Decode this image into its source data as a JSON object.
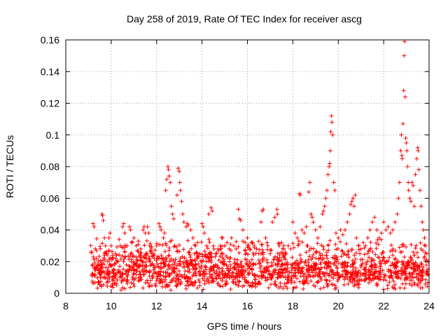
{
  "chart_data": {
    "type": "scatter",
    "title": "Day 258 of 2019, Rate Of TEC Index for receiver ascg",
    "xlabel": "GPS time / hours",
    "ylabel": "ROTI / TECUs",
    "xlim": [
      8,
      24
    ],
    "ylim": [
      0,
      0.16
    ],
    "xticks": [
      8,
      10,
      12,
      14,
      16,
      18,
      20,
      22,
      24
    ],
    "yticks": [
      0,
      0.02,
      0.04,
      0.06,
      0.08,
      0.1,
      0.12,
      0.14,
      0.16
    ],
    "xtick_labels": [
      "8",
      "10",
      "12",
      "14",
      "16",
      "18",
      "20",
      "22",
      "24"
    ],
    "ytick_labels": [
      "0",
      "0.02",
      "0.04",
      "0.06",
      "0.08",
      "0.1",
      "0.12",
      "0.14",
      "0.16"
    ],
    "grid": true,
    "marker": "+",
    "color": "#ff0000",
    "series": [
      {
        "name": "ROTI",
        "points": [
          [
            9.2,
            0.044
          ],
          [
            9.25,
            0.042
          ],
          [
            9.3,
            0.028
          ],
          [
            9.35,
            0.022
          ],
          [
            9.4,
            0.018
          ],
          [
            9.45,
            0.015
          ],
          [
            9.5,
            0.012
          ],
          [
            9.55,
            0.016
          ],
          [
            9.6,
            0.05
          ],
          [
            9.62,
            0.049
          ],
          [
            9.65,
            0.046
          ],
          [
            9.7,
            0.035
          ],
          [
            9.75,
            0.03
          ],
          [
            9.8,
            0.025
          ],
          [
            9.85,
            0.02
          ],
          [
            9.9,
            0.035
          ],
          [
            9.95,
            0.038
          ],
          [
            10.0,
            0.03
          ],
          [
            10.05,
            0.022
          ],
          [
            10.1,
            0.015
          ],
          [
            10.2,
            0.012
          ],
          [
            10.3,
            0.02
          ],
          [
            10.35,
            0.034
          ],
          [
            10.4,
            0.03
          ],
          [
            10.5,
            0.042
          ],
          [
            10.55,
            0.044
          ],
          [
            10.6,
            0.038
          ],
          [
            10.7,
            0.03
          ],
          [
            10.8,
            0.042
          ],
          [
            10.85,
            0.04
          ],
          [
            10.9,
            0.032
          ],
          [
            11.0,
            0.035
          ],
          [
            11.1,
            0.03
          ],
          [
            11.2,
            0.033
          ],
          [
            11.3,
            0.028
          ],
          [
            11.4,
            0.04
          ],
          [
            11.45,
            0.042
          ],
          [
            11.5,
            0.038
          ],
          [
            11.55,
            0.025
          ],
          [
            11.6,
            0.042
          ],
          [
            11.65,
            0.038
          ],
          [
            11.7,
            0.03
          ],
          [
            11.8,
            0.025
          ],
          [
            11.9,
            0.022
          ],
          [
            12.0,
            0.03
          ],
          [
            12.1,
            0.044
          ],
          [
            12.15,
            0.042
          ],
          [
            12.2,
            0.04
          ],
          [
            12.3,
            0.035
          ],
          [
            12.35,
            0.038
          ],
          [
            12.4,
            0.065
          ],
          [
            12.45,
            0.072
          ],
          [
            12.5,
            0.08
          ],
          [
            12.52,
            0.078
          ],
          [
            12.55,
            0.074
          ],
          [
            12.6,
            0.07
          ],
          [
            12.65,
            0.055
          ],
          [
            12.7,
            0.05
          ],
          [
            12.75,
            0.047
          ],
          [
            12.8,
            0.03
          ],
          [
            12.9,
            0.062
          ],
          [
            12.95,
            0.079
          ],
          [
            13.0,
            0.077
          ],
          [
            13.02,
            0.07
          ],
          [
            13.05,
            0.065
          ],
          [
            13.1,
            0.058
          ],
          [
            13.15,
            0.05
          ],
          [
            13.2,
            0.045
          ],
          [
            13.3,
            0.042
          ],
          [
            13.35,
            0.044
          ],
          [
            13.4,
            0.043
          ],
          [
            13.5,
            0.04
          ],
          [
            13.6,
            0.035
          ],
          [
            13.7,
            0.03
          ],
          [
            13.8,
            0.032
          ],
          [
            13.9,
            0.025
          ],
          [
            14.0,
            0.044
          ],
          [
            14.05,
            0.042
          ],
          [
            14.1,
            0.038
          ],
          [
            14.2,
            0.03
          ],
          [
            14.3,
            0.05
          ],
          [
            14.4,
            0.054
          ],
          [
            14.45,
            0.052
          ],
          [
            14.5,
            0.03
          ],
          [
            14.6,
            0.025
          ],
          [
            14.7,
            0.028
          ],
          [
            14.8,
            0.03
          ],
          [
            14.9,
            0.035
          ],
          [
            15.0,
            0.03
          ],
          [
            15.1,
            0.032
          ],
          [
            15.2,
            0.028
          ],
          [
            15.3,
            0.035
          ],
          [
            15.4,
            0.03
          ],
          [
            15.5,
            0.028
          ],
          [
            15.6,
            0.053
          ],
          [
            15.65,
            0.047
          ],
          [
            15.7,
            0.046
          ],
          [
            15.8,
            0.04
          ],
          [
            15.9,
            0.032
          ],
          [
            16.0,
            0.035
          ],
          [
            16.1,
            0.028
          ],
          [
            16.2,
            0.032
          ],
          [
            16.3,
            0.03
          ],
          [
            16.4,
            0.028
          ],
          [
            16.5,
            0.025
          ],
          [
            16.6,
            0.045
          ],
          [
            16.65,
            0.052
          ],
          [
            16.7,
            0.053
          ],
          [
            16.8,
            0.035
          ],
          [
            16.9,
            0.03
          ],
          [
            17.0,
            0.025
          ],
          [
            17.1,
            0.045
          ],
          [
            17.2,
            0.048
          ],
          [
            17.3,
            0.053
          ],
          [
            17.32,
            0.05
          ],
          [
            17.4,
            0.03
          ],
          [
            17.5,
            0.032
          ],
          [
            17.6,
            0.028
          ],
          [
            17.7,
            0.025
          ],
          [
            17.8,
            0.03
          ],
          [
            17.9,
            0.028
          ],
          [
            18.0,
            0.045
          ],
          [
            18.1,
            0.038
          ],
          [
            18.2,
            0.035
          ],
          [
            18.3,
            0.063
          ],
          [
            18.32,
            0.062
          ],
          [
            18.4,
            0.04
          ],
          [
            18.5,
            0.038
          ],
          [
            18.6,
            0.042
          ],
          [
            18.7,
            0.064
          ],
          [
            18.75,
            0.07
          ],
          [
            18.8,
            0.05
          ],
          [
            18.85,
            0.048
          ],
          [
            18.9,
            0.045
          ],
          [
            19.0,
            0.04
          ],
          [
            19.1,
            0.035
          ],
          [
            19.2,
            0.042
          ],
          [
            19.3,
            0.05
          ],
          [
            19.35,
            0.052
          ],
          [
            19.4,
            0.055
          ],
          [
            19.45,
            0.06
          ],
          [
            19.5,
            0.065
          ],
          [
            19.55,
            0.075
          ],
          [
            19.6,
            0.08
          ],
          [
            19.62,
            0.082
          ],
          [
            19.65,
            0.09
          ],
          [
            19.67,
            0.102
          ],
          [
            19.7,
            0.112
          ],
          [
            19.72,
            0.108
          ],
          [
            19.75,
            0.1
          ],
          [
            19.8,
            0.07
          ],
          [
            19.85,
            0.065
          ],
          [
            19.9,
            0.038
          ],
          [
            20.0,
            0.035
          ],
          [
            20.1,
            0.04
          ],
          [
            20.2,
            0.037
          ],
          [
            20.3,
            0.04
          ],
          [
            20.4,
            0.045
          ],
          [
            20.5,
            0.05
          ],
          [
            20.55,
            0.056
          ],
          [
            20.6,
            0.058
          ],
          [
            20.65,
            0.06
          ],
          [
            20.7,
            0.055
          ],
          [
            20.75,
            0.062
          ],
          [
            20.8,
            0.035
          ],
          [
            20.9,
            0.03
          ],
          [
            21.0,
            0.028
          ],
          [
            21.1,
            0.032
          ],
          [
            21.2,
            0.03
          ],
          [
            21.3,
            0.035
          ],
          [
            21.4,
            0.04
          ],
          [
            21.5,
            0.045
          ],
          [
            21.6,
            0.048
          ],
          [
            21.7,
            0.04
          ],
          [
            21.8,
            0.035
          ],
          [
            21.9,
            0.038
          ],
          [
            22.0,
            0.045
          ],
          [
            22.1,
            0.04
          ],
          [
            22.2,
            0.042
          ],
          [
            22.3,
            0.038
          ],
          [
            22.4,
            0.04
          ],
          [
            22.5,
            0.045
          ],
          [
            22.6,
            0.05
          ],
          [
            22.65,
            0.06
          ],
          [
            22.7,
            0.07
          ],
          [
            22.75,
            0.09
          ],
          [
            22.78,
            0.1
          ],
          [
            22.8,
            0.087
          ],
          [
            22.82,
            0.085
          ],
          [
            22.85,
            0.107
          ],
          [
            22.88,
            0.128
          ],
          [
            22.9,
            0.15
          ],
          [
            22.92,
            0.159
          ],
          [
            22.95,
            0.124
          ],
          [
            22.97,
            0.098
          ],
          [
            23.0,
            0.095
          ],
          [
            23.02,
            0.09
          ],
          [
            23.05,
            0.08
          ],
          [
            23.08,
            0.07
          ],
          [
            23.1,
            0.065
          ],
          [
            23.15,
            0.06
          ],
          [
            23.2,
            0.058
          ],
          [
            23.25,
            0.07
          ],
          [
            23.3,
            0.068
          ],
          [
            23.35,
            0.055
          ],
          [
            23.4,
            0.075
          ],
          [
            23.45,
            0.085
          ],
          [
            23.5,
            0.092
          ],
          [
            23.52,
            0.09
          ],
          [
            23.55,
            0.078
          ],
          [
            23.6,
            0.065
          ],
          [
            23.65,
            0.055
          ],
          [
            23.7,
            0.045
          ],
          [
            23.75,
            0.04
          ],
          [
            23.8,
            0.035
          ],
          [
            23.85,
            0.03
          ],
          [
            23.9,
            0.025
          ],
          [
            23.95,
            0.02
          ]
        ],
        "band": {
          "x_range": [
            9.1,
            23.95
          ],
          "y_floor_range": [
            0.002,
            0.012
          ],
          "y_ceil_range": [
            0.018,
            0.036
          ],
          "count": 1700
        }
      }
    ]
  }
}
